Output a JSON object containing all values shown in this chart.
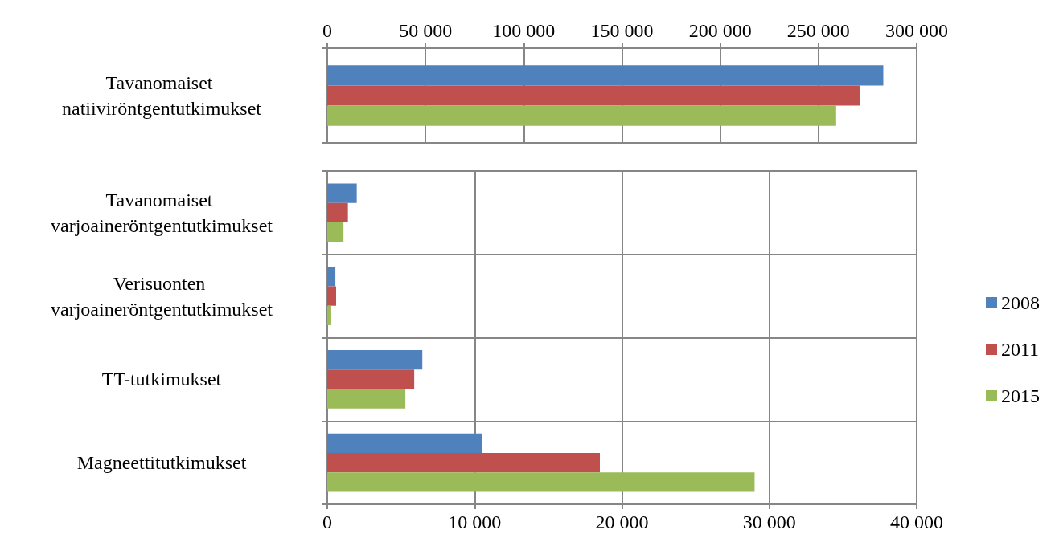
{
  "chart_data": [
    {
      "type": "bar",
      "orientation": "horizontal",
      "categories": [
        "Tavanomaiset natiiviröntgentutkimukset"
      ],
      "xlim": [
        0,
        300000
      ],
      "xticks": [
        0,
        {
          "value": 50000,
          "label": "50 000"
        },
        {
          "value": 100000,
          "label": "100 000"
        },
        {
          "value": 150000,
          "label": "150 000"
        },
        {
          "value": 200000,
          "label": "200 000"
        },
        {
          "value": 250000,
          "label": "250 000"
        },
        {
          "value": 300000,
          "label": "300 000"
        }
      ],
      "grid": "x",
      "legend": false,
      "series": [
        {
          "color": "#4f81bd",
          "values": [
            283000
          ]
        },
        {
          "color": "#c0504d",
          "values": [
            271000
          ]
        },
        {
          "color": "#9bbb59",
          "values": [
            259000
          ]
        }
      ]
    },
    {
      "type": "bar",
      "orientation": "horizontal",
      "categories": [
        "Tavanomaiset varjoaineröntgentutkimukset",
        "Verisuonten varjoaineröntgentutkimukset",
        "TT-tutkimukset",
        "Magneettitutkimukset"
      ],
      "xlim": [
        0,
        40000
      ],
      "xticks": [
        0,
        {
          "value": 10000,
          "label": "10 000"
        },
        {
          "value": 20000,
          "label": "20 000"
        },
        {
          "value": 30000,
          "label": "30 000"
        },
        {
          "value": 40000,
          "label": "40 000"
        }
      ],
      "grid": true,
      "legend": "right",
      "series": [
        {
          "name": "2008",
          "color": "#4f81bd",
          "values": [
            2000,
            550,
            6450,
            10500
          ]
        },
        {
          "name": "2011",
          "color": "#c0504d",
          "values": [
            1400,
            600,
            5900,
            18500
          ]
        },
        {
          "name": "2015",
          "color": "#9bbb59",
          "values": [
            1100,
            270,
            5300,
            29000
          ]
        }
      ]
    }
  ]
}
